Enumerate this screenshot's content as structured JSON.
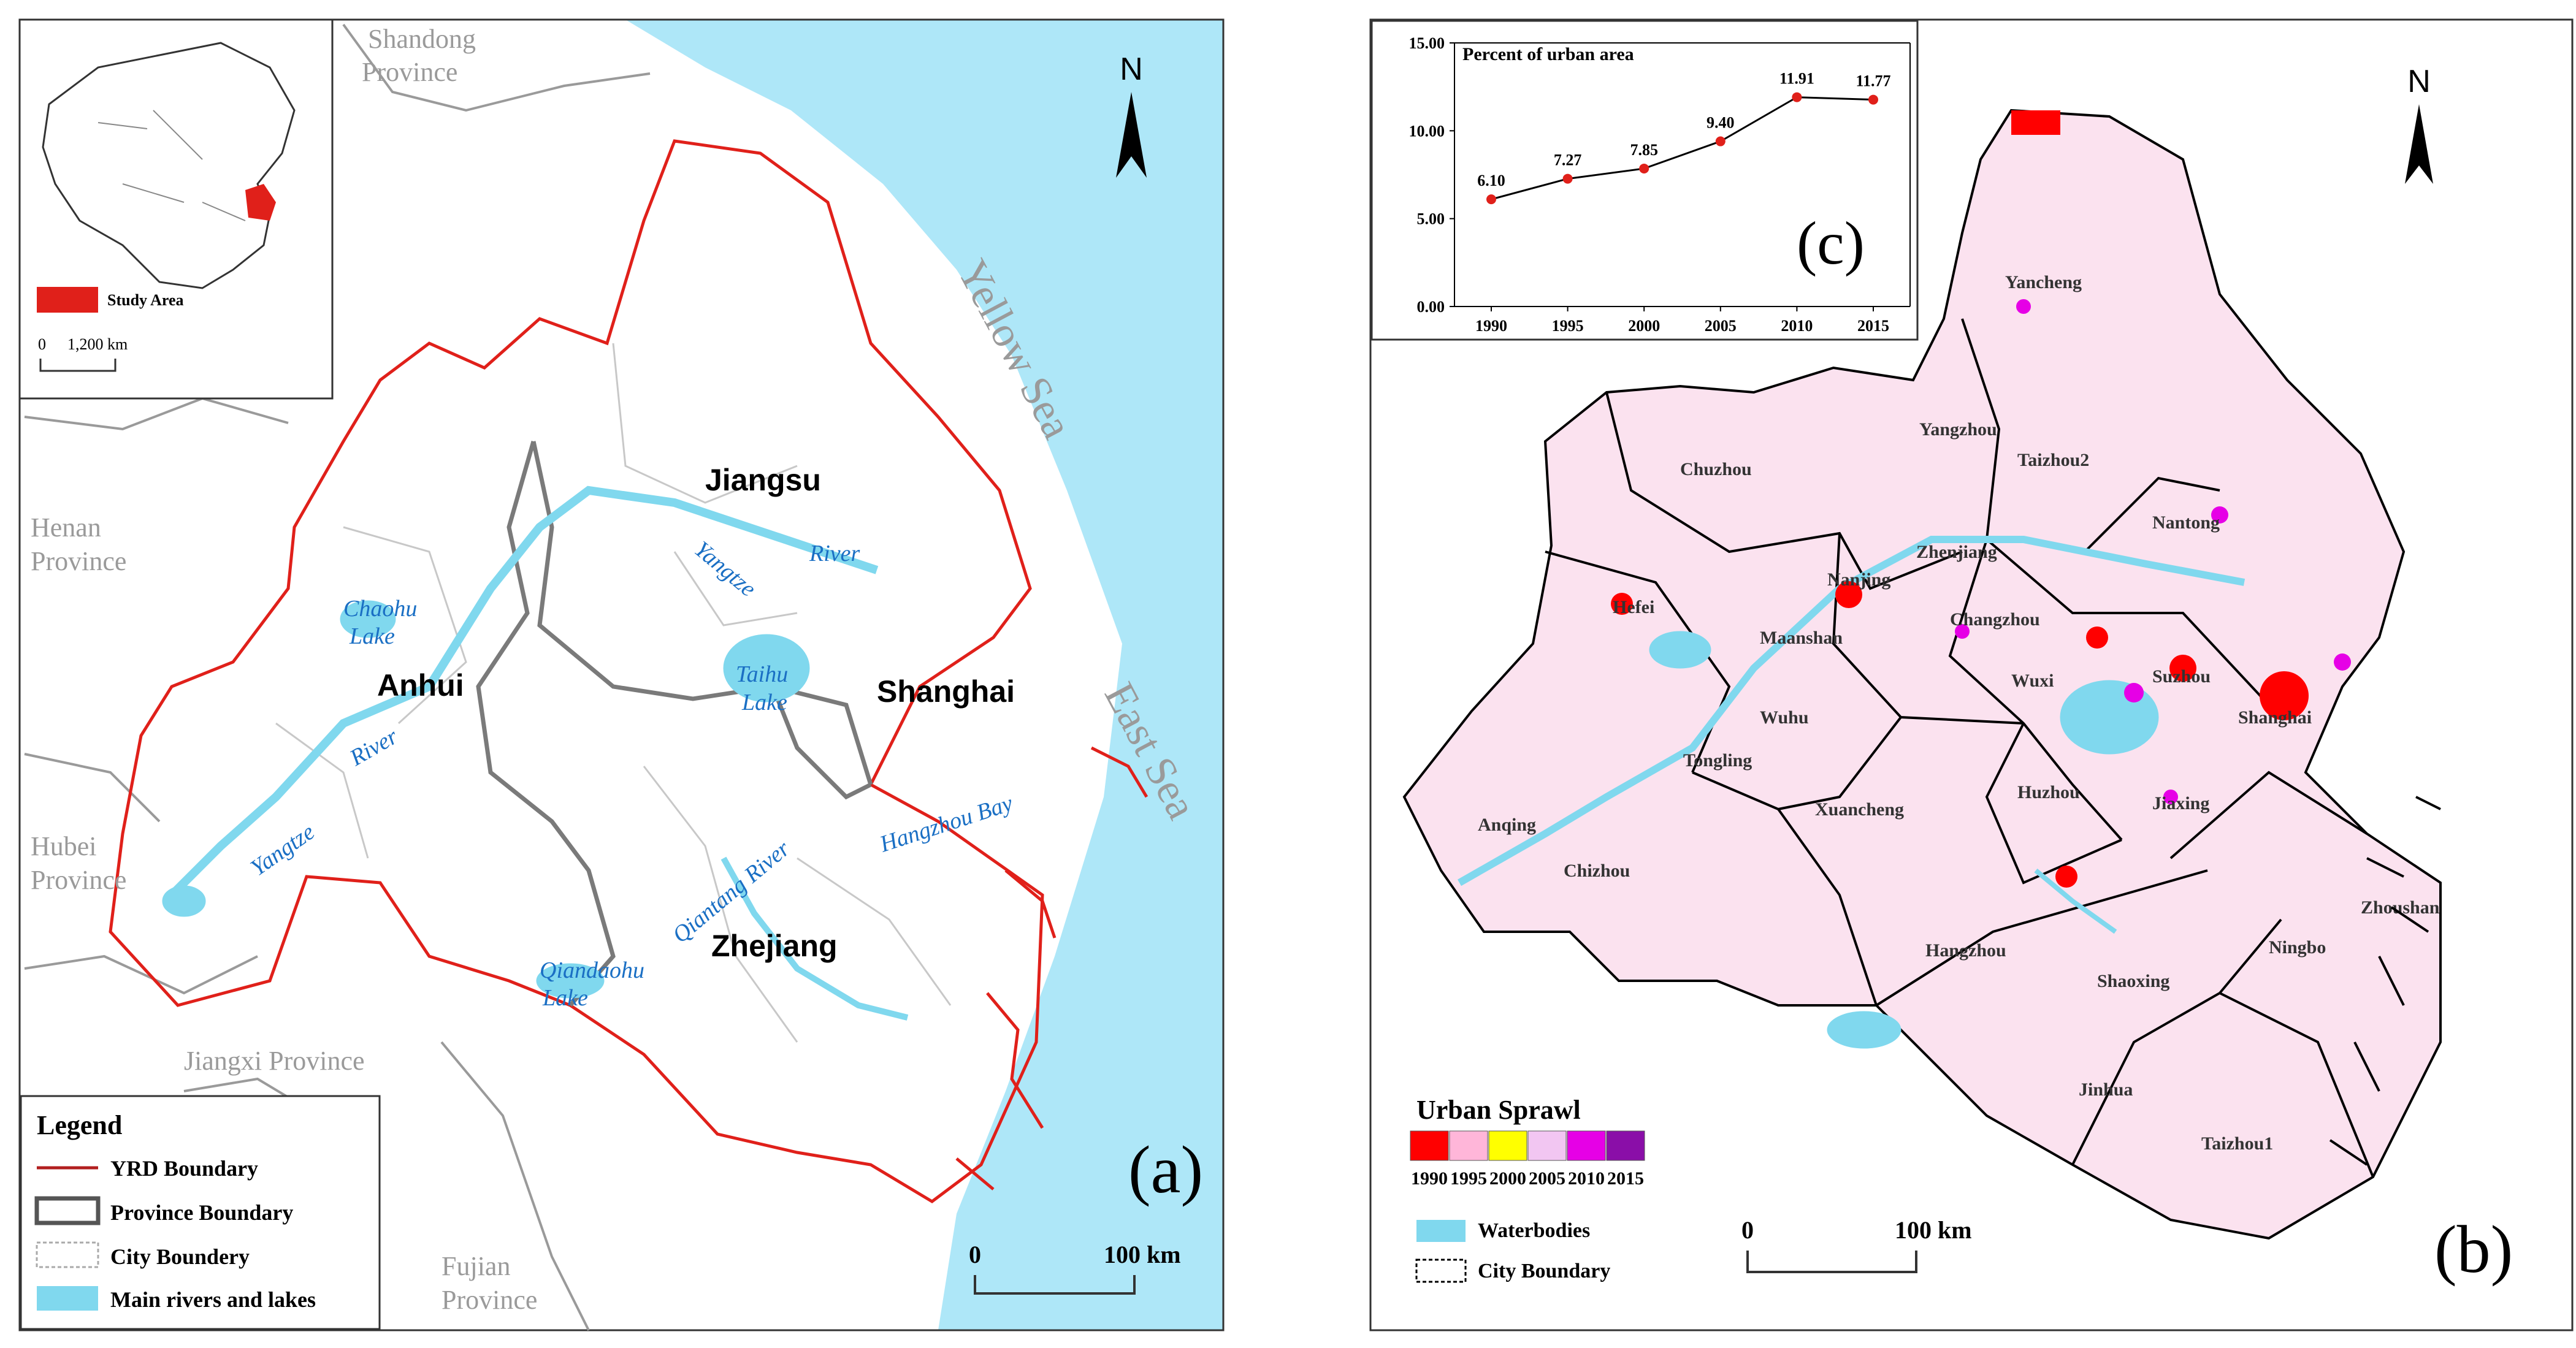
{
  "panel_a": {
    "panel_label": "(a)",
    "north_label": "N",
    "seas": [
      "Yellow Sea",
      "East Sea"
    ],
    "neighbor_provinces": [
      [
        "Shandong",
        "Province"
      ],
      [
        "Henan",
        "Province"
      ],
      [
        "Hubei",
        "Province"
      ],
      [
        "Fujian",
        "Province"
      ],
      [
        "Jiangxi Province"
      ]
    ],
    "provinces": [
      "Jiangsu",
      "Anhui",
      "Shanghai",
      "Zhejiang"
    ],
    "water_labels": [
      "Yangtze",
      "River",
      "Yangtze",
      "River",
      "Chaohu",
      "Lake",
      "Taihu",
      "Lake",
      "Qiandaohu",
      "Lake",
      "Qiantang River",
      "Hangzhou Bay"
    ],
    "inset": {
      "legend_label": "Study Area",
      "scale_zero": "0",
      "scale_label": "1,200 km"
    },
    "legend": {
      "title": "Legend",
      "items": [
        "YRD Boundary",
        "Province Boundary",
        "City Boundery",
        "Main rivers and lakes"
      ]
    },
    "scale": {
      "zero": "0",
      "end": "100 km"
    }
  },
  "panel_b": {
    "panel_label": "(b)",
    "north_label": "N",
    "cities": [
      "Yancheng",
      "Yangzhou",
      "Taizhou2",
      "Chuzhou",
      "Nantong",
      "Zhenjiang",
      "Nanjing",
      "Hefei",
      "Maanshan",
      "Changzhou",
      "Wuxi",
      "Suzhou",
      "Shanghai",
      "Wuhu",
      "Tongling",
      "Anqing",
      "Chizhou",
      "Xuancheng",
      "Huzhou",
      "Jiaxing",
      "Zhoushan",
      "Hangzhou",
      "Shaoxing",
      "Ningbo",
      "Jinhua",
      "Taizhou1"
    ],
    "legend": {
      "title": "Urban Sprawl",
      "years": [
        "1990",
        "1995",
        "2000",
        "2005",
        "2010",
        "2015"
      ],
      "colors": [
        "#ff0000",
        "#ffb6d9",
        "#ffff00",
        "#f2c6f2",
        "#e600e6",
        "#8a0ea8"
      ],
      "waterbodies_label": "Waterbodies",
      "city_boundary_label": "City Boundary"
    },
    "scale": {
      "zero": "0",
      "end": "100 km"
    }
  },
  "chart_data": {
    "type": "line",
    "panel_label": "(c)",
    "title": "Percent of urban area",
    "x": [
      "1990",
      "1995",
      "2000",
      "2005",
      "2010",
      "2015"
    ],
    "values": [
      6.1,
      7.27,
      7.85,
      9.4,
      11.91,
      11.77
    ],
    "value_labels": [
      "6.10",
      "7.27",
      "7.85",
      "9.40",
      "11.91",
      "11.77"
    ],
    "yticks": [
      "0.00",
      "5.00",
      "10.00",
      "15.00"
    ],
    "ylim": [
      0,
      15
    ],
    "line_color": "#000000",
    "marker_color": "#e0201a"
  }
}
